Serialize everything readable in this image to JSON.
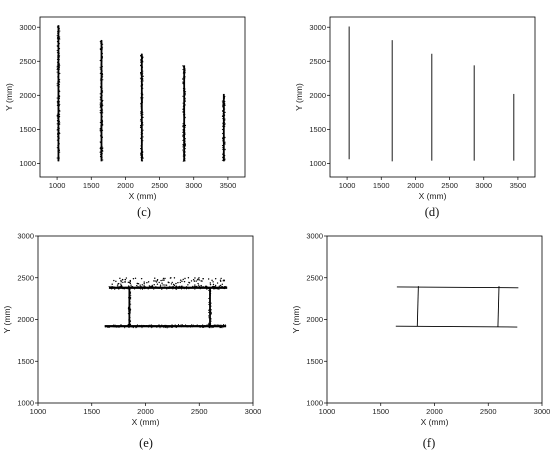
{
  "panel_labels": [
    "(c)",
    "(d)",
    "(e)",
    "(f)"
  ],
  "chart_data": [
    {
      "id": "c",
      "type": "scatter",
      "style": "points",
      "xlabel": "X (mm)",
      "ylabel": "Y (mm)",
      "xlim": [
        750,
        3750
      ],
      "ylim": [
        800,
        3150
      ],
      "xticks": [
        1000,
        1500,
        2000,
        2500,
        3000,
        3500
      ],
      "yticks": [
        1000,
        1500,
        2000,
        2500,
        3000
      ],
      "series": [
        {
          "type": "vertical-strip",
          "x": 1020,
          "y": [
            1030,
            3030
          ]
        },
        {
          "type": "vertical-strip",
          "x": 1650,
          "y": [
            1030,
            2810
          ]
        },
        {
          "type": "vertical-strip",
          "x": 2240,
          "y": [
            1030,
            2610
          ]
        },
        {
          "type": "vertical-strip",
          "x": 2860,
          "y": [
            1030,
            2440
          ]
        },
        {
          "type": "vertical-strip",
          "x": 3440,
          "y": [
            1030,
            2020
          ]
        }
      ]
    },
    {
      "id": "d",
      "type": "line",
      "style": "lines",
      "xlabel": "X (mm)",
      "ylabel": "Y (mm)",
      "xlim": [
        750,
        3750
      ],
      "ylim": [
        800,
        3150
      ],
      "xticks": [
        1000,
        1500,
        2000,
        2500,
        3000,
        3500
      ],
      "yticks": [
        1000,
        1500,
        2000,
        2500,
        3000
      ],
      "series": [
        {
          "x": [
            1030,
            1030
          ],
          "y": [
            1060,
            3010
          ]
        },
        {
          "x": [
            1660,
            1660
          ],
          "y": [
            1030,
            2810
          ]
        },
        {
          "x": [
            2240,
            2240
          ],
          "y": [
            1040,
            2610
          ]
        },
        {
          "x": [
            2860,
            2860
          ],
          "y": [
            1040,
            2440
          ]
        },
        {
          "x": [
            3440,
            3440
          ],
          "y": [
            1040,
            2020
          ]
        }
      ]
    },
    {
      "id": "e",
      "type": "scatter",
      "style": "points",
      "xlabel": "X (mm)",
      "ylabel": "Y (mm)",
      "xlim": [
        1000,
        3000
      ],
      "ylim": [
        1000,
        3000
      ],
      "xticks": [
        1000,
        1500,
        2000,
        2500,
        3000
      ],
      "yticks": [
        1000,
        1500,
        2000,
        2500,
        3000
      ],
      "series": [
        {
          "type": "horizontal-strip",
          "x": [
            1660,
            2760
          ],
          "y": 2380
        },
        {
          "type": "scattered-band",
          "x": [
            1690,
            2750
          ],
          "y": [
            2390,
            2500
          ]
        },
        {
          "type": "horizontal-strip",
          "x": [
            1620,
            2750
          ],
          "y": 1920
        },
        {
          "type": "vertical-strip",
          "x": 1850,
          "y": [
            1920,
            2380
          ]
        },
        {
          "type": "vertical-strip",
          "x": 2600,
          "y": [
            1920,
            2380
          ]
        }
      ]
    },
    {
      "id": "f",
      "type": "line",
      "style": "lines",
      "xlabel": "X (mm)",
      "ylabel": "Y (mm)",
      "xlim": [
        1000,
        3000
      ],
      "ylim": [
        1000,
        3000
      ],
      "xticks": [
        1000,
        1500,
        2000,
        2500,
        3000
      ],
      "yticks": [
        1000,
        1500,
        2000,
        2500,
        3000
      ],
      "series": [
        {
          "x": [
            1650,
            2780
          ],
          "y": [
            2390,
            2380
          ]
        },
        {
          "x": [
            1640,
            2770
          ],
          "y": [
            1920,
            1910
          ]
        },
        {
          "x": [
            1850,
            1840
          ],
          "y": [
            2400,
            1920
          ]
        },
        {
          "x": [
            2600,
            2590
          ],
          "y": [
            2400,
            1910
          ]
        }
      ]
    }
  ]
}
